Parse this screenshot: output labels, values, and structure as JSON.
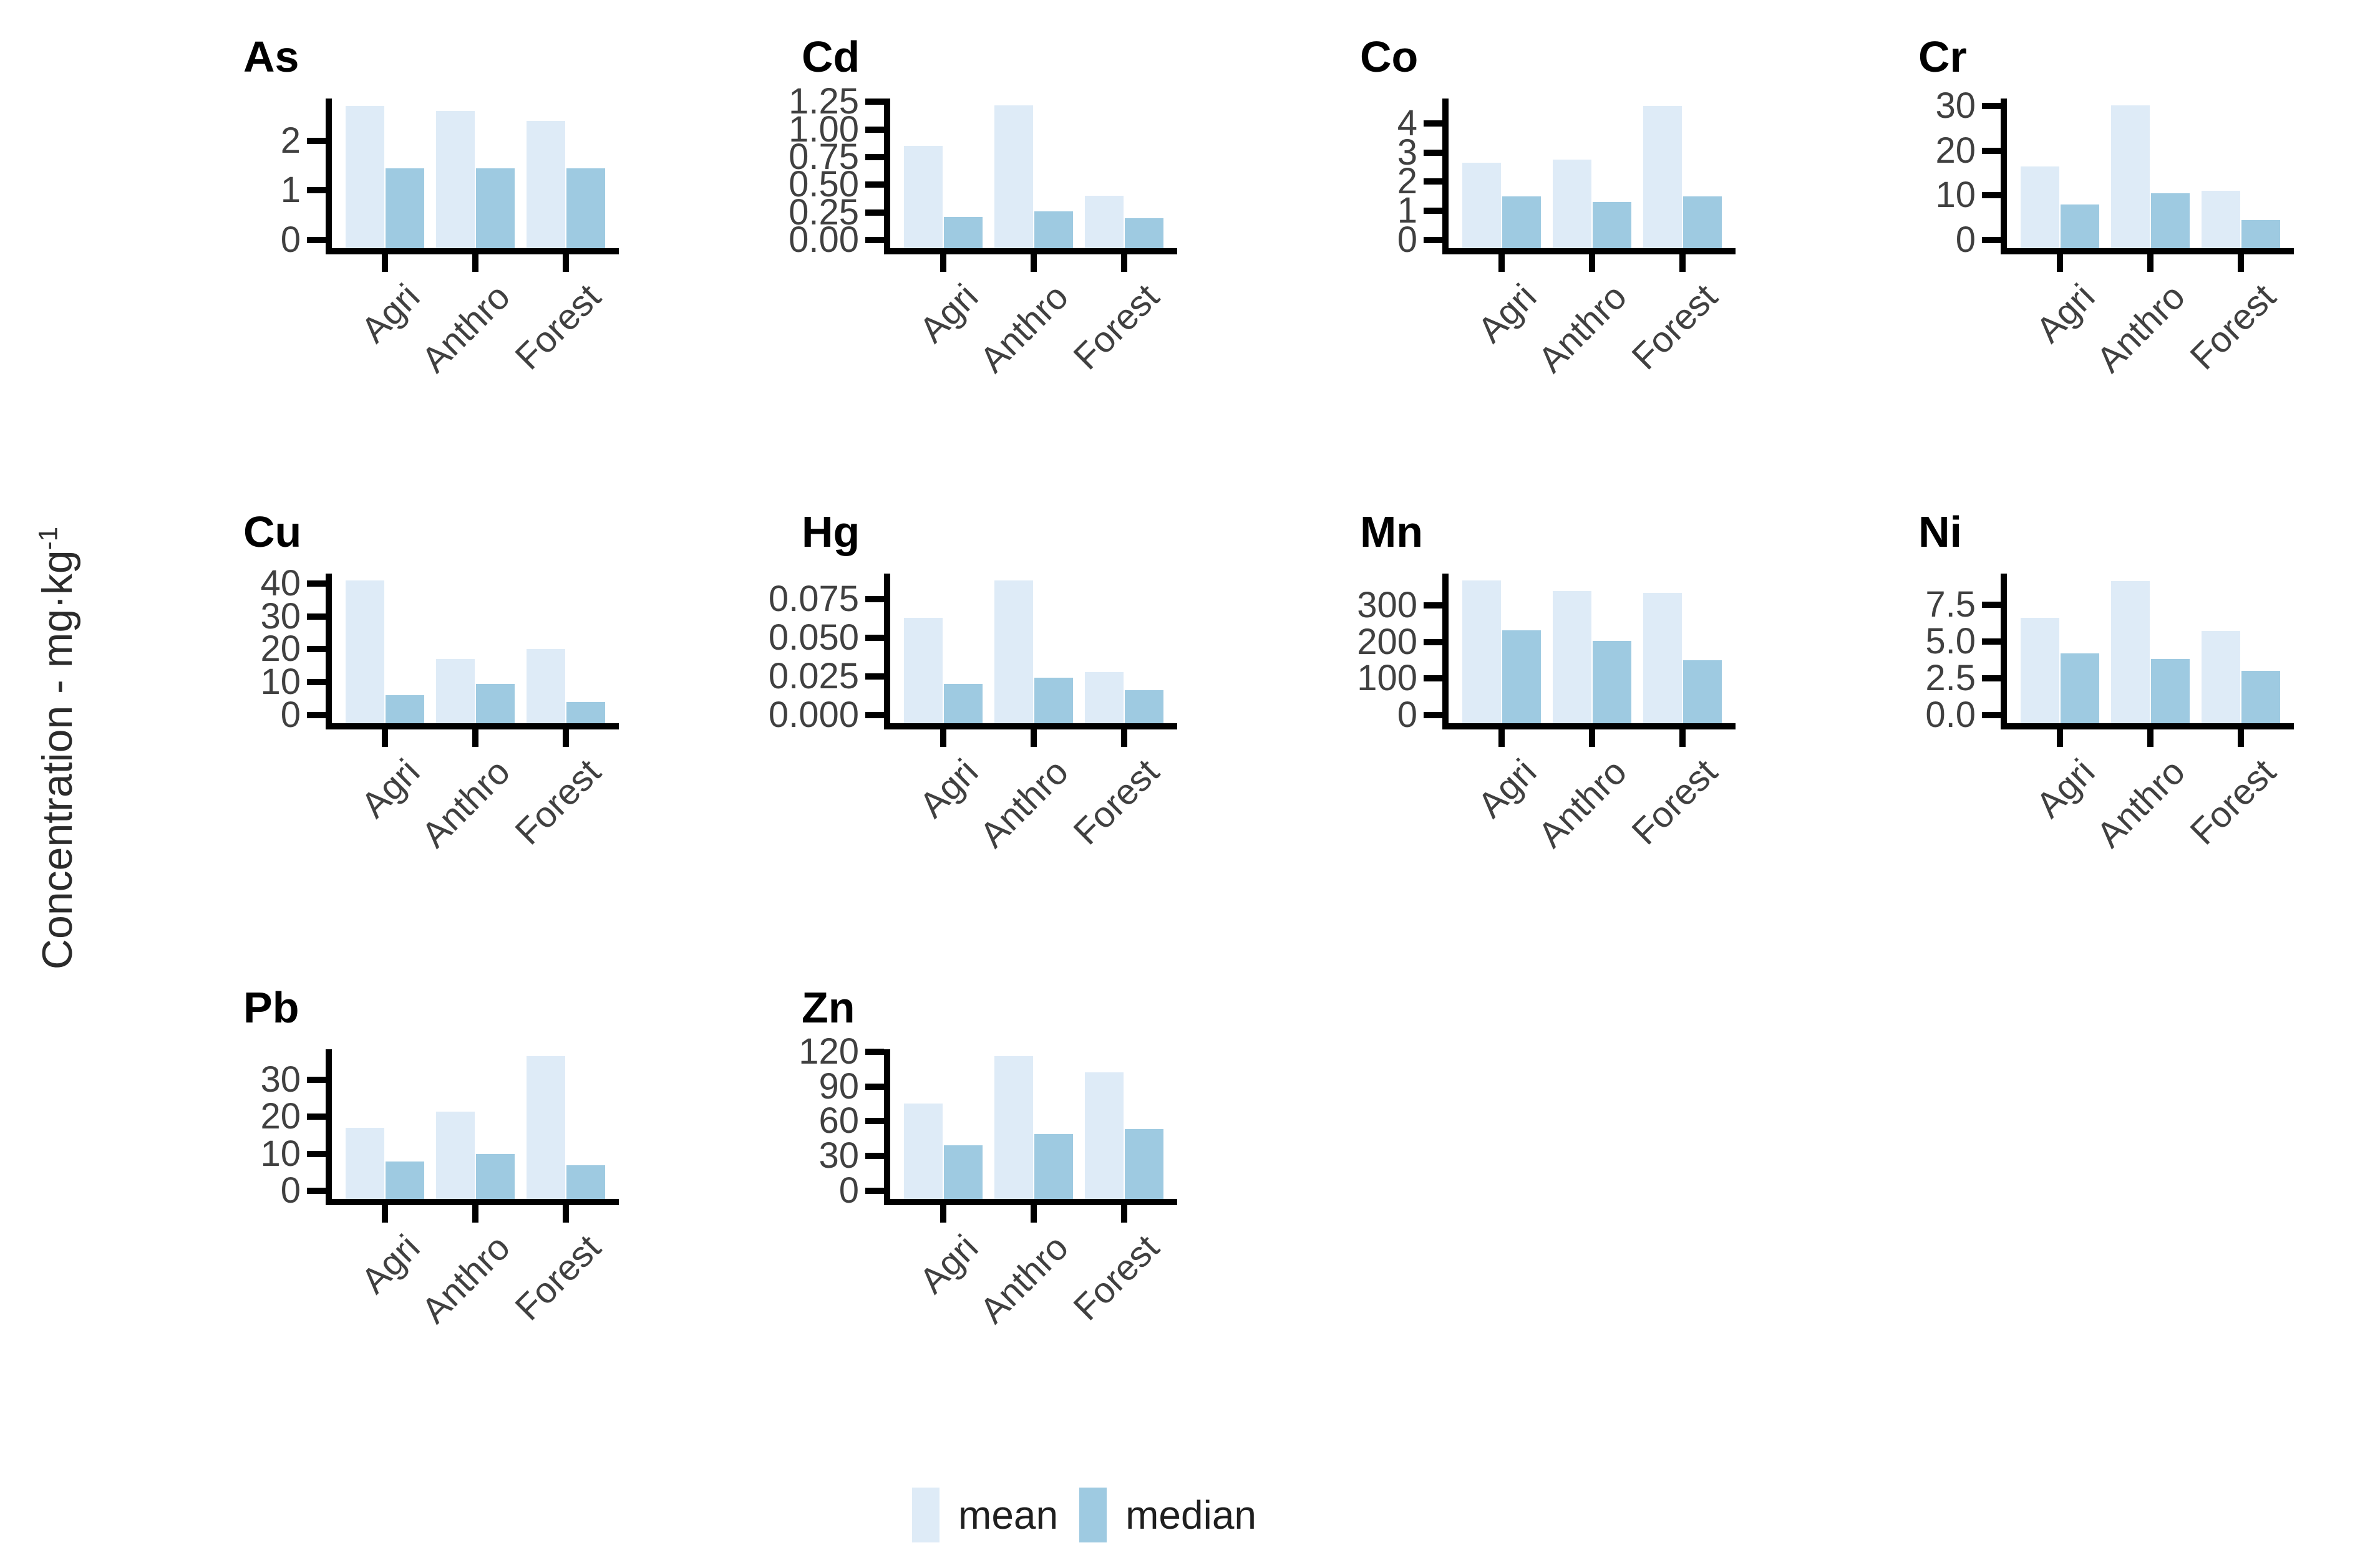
{
  "ylabel": {
    "main": "Concentration - mg·kg",
    "sup": "-1"
  },
  "legend": {
    "items": [
      {
        "label": "mean",
        "color": "#DEEBF7"
      },
      {
        "label": "median",
        "color": "#9ECAE1"
      }
    ]
  },
  "colors": {
    "mean": "#DEEBF7",
    "median": "#9ECAE1",
    "axis": "#000000",
    "tick_text": "#404040",
    "title_text": "#000000"
  },
  "chart_data": {
    "type": "bar",
    "categories": [
      "Agri",
      "Anthro",
      "Forest"
    ],
    "series_names": [
      "mean",
      "median"
    ],
    "ylabel": "Concentration - mg·kg⁻¹",
    "legend_position": "bottom",
    "grid": false,
    "facets": [
      {
        "title": "As",
        "ymax": 2.85,
        "ticks": {
          "values": [
            0,
            1,
            2
          ],
          "labels": [
            "0",
            "1",
            "2"
          ]
        },
        "series": [
          {
            "name": "mean",
            "values": [
              2.7,
              2.6,
              2.4
            ]
          },
          {
            "name": "median",
            "values": [
              1.45,
              1.45,
              1.45
            ]
          }
        ]
      },
      {
        "title": "Cd",
        "ymax": 1.28,
        "ticks": {
          "values": [
            0,
            0.25,
            0.5,
            0.75,
            1.0,
            1.25
          ],
          "labels": [
            "0.00",
            "0.25",
            "0.50",
            "0.75",
            "1.00",
            "1.25"
          ]
        },
        "series": [
          {
            "name": "mean",
            "values": [
              0.85,
              1.22,
              0.4
            ]
          },
          {
            "name": "median",
            "values": [
              0.21,
              0.26,
              0.2
            ]
          }
        ]
      },
      {
        "title": "Co",
        "ymax": 4.85,
        "ticks": {
          "values": [
            0,
            1,
            2,
            3,
            4
          ],
          "labels": [
            "0",
            "1",
            "2",
            "3",
            "4"
          ]
        },
        "series": [
          {
            "name": "mean",
            "values": [
              2.65,
              2.75,
              4.6
            ]
          },
          {
            "name": "median",
            "values": [
              1.5,
              1.3,
              1.5
            ]
          }
        ]
      },
      {
        "title": "Cr",
        "ymax": 31.7,
        "ticks": {
          "values": [
            0,
            10,
            20,
            30
          ],
          "labels": [
            "0",
            "10",
            "20",
            "30"
          ]
        },
        "series": [
          {
            "name": "mean",
            "values": [
              16.5,
              30.2,
              11.0
            ]
          },
          {
            "name": "median",
            "values": [
              8.0,
              10.5,
              4.5
            ]
          }
        ]
      },
      {
        "title": "Cu",
        "ymax": 43.0,
        "ticks": {
          "values": [
            0,
            10,
            20,
            30,
            40
          ],
          "labels": [
            "0",
            "10",
            "20",
            "30",
            "40"
          ]
        },
        "series": [
          {
            "name": "mean",
            "values": [
              41.0,
              17.0,
              20.0
            ]
          },
          {
            "name": "median",
            "values": [
              6.0,
              9.5,
              4.0
            ]
          }
        ]
      },
      {
        "title": "Hg",
        "ymax": 0.0915,
        "ticks": {
          "values": [
            0,
            0.025,
            0.05,
            0.075
          ],
          "labels": [
            "0.000",
            "0.025",
            "0.050",
            "0.075"
          ]
        },
        "series": [
          {
            "name": "mean",
            "values": [
              0.063,
              0.087,
              0.028
            ]
          },
          {
            "name": "median",
            "values": [
              0.02,
              0.024,
              0.016
            ]
          }
        ]
      },
      {
        "title": "Mn",
        "ymax": 388,
        "ticks": {
          "values": [
            0,
            100,
            200,
            300
          ],
          "labels": [
            "0",
            "100",
            "200",
            "300"
          ]
        },
        "series": [
          {
            "name": "mean",
            "values": [
              369,
              341,
              335
            ]
          },
          {
            "name": "median",
            "values": [
              233,
              203,
              150
            ]
          }
        ]
      },
      {
        "title": "Ni",
        "ymax": 9.6,
        "ticks": {
          "values": [
            0,
            2.5,
            5.0,
            7.5
          ],
          "labels": [
            "0.0",
            "2.5",
            "5.0",
            "7.5"
          ]
        },
        "series": [
          {
            "name": "mean",
            "values": [
              6.6,
              9.1,
              5.7
            ]
          },
          {
            "name": "median",
            "values": [
              4.2,
              3.8,
              3.0
            ]
          }
        ]
      },
      {
        "title": "Pb",
        "ymax": 38.3,
        "ticks": {
          "values": [
            0,
            10,
            20,
            30
          ],
          "labels": [
            "0",
            "10",
            "20",
            "30"
          ]
        },
        "series": [
          {
            "name": "mean",
            "values": [
              17.0,
              21.5,
              36.5
            ]
          },
          {
            "name": "median",
            "values": [
              8.0,
              10.0,
              7.0
            ]
          }
        ]
      },
      {
        "title": "Zn",
        "ymax": 122,
        "ticks": {
          "values": [
            0,
            30,
            60,
            90,
            120
          ],
          "labels": [
            "0",
            "30",
            "60",
            "90",
            "120"
          ]
        },
        "series": [
          {
            "name": "mean",
            "values": [
              75,
              116,
              102
            ]
          },
          {
            "name": "median",
            "values": [
              39,
              49,
              53
            ]
          }
        ]
      }
    ]
  }
}
